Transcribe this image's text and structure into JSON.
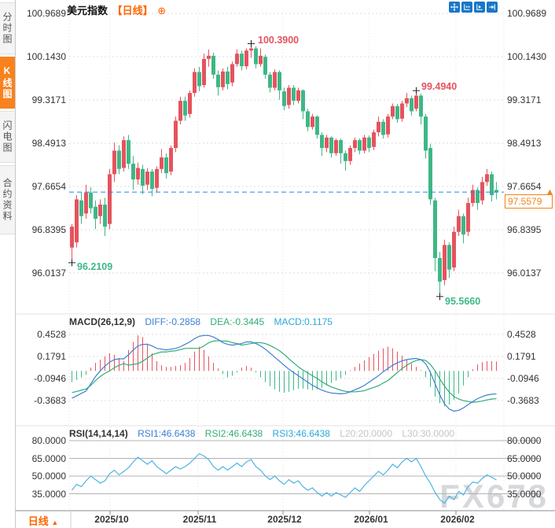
{
  "header": {
    "symbol": "美元指数",
    "period_tag": "【日线】",
    "add_icon": "⊕"
  },
  "sidebar": {
    "tabs": [
      {
        "label": "分时图",
        "active": false
      },
      {
        "label": "K线图",
        "active": true
      },
      {
        "label": "闪电图",
        "active": false
      },
      {
        "label": "合约资料",
        "active": false
      }
    ]
  },
  "toolbar": {
    "buttons": [
      "crosshair",
      "compress-time-axis",
      "expand-time-axis",
      "go-to-latest"
    ]
  },
  "price_panel": {
    "axis_labels": [
      "100.9689",
      "100.1430",
      "99.3171",
      "98.4913",
      "97.6654",
      "96.8395",
      "96.0137"
    ],
    "annotations": {
      "high": "100.3900",
      "second_peak": "99.4940",
      "start_low": "96.2109",
      "low": "95.5660"
    },
    "current_price": "97.5579",
    "current_arrow": "▲"
  },
  "macd_panel": {
    "header": {
      "name": "MACD(26,12,9)",
      "diff_label": "DIFF:-0.2858",
      "dea_label": "DEA:-0.3445",
      "macd_label": "MACD:0.1175"
    },
    "axis_labels": [
      "0.4528",
      "0.1791",
      "-0.0946",
      "-0.3683"
    ]
  },
  "rsi_panel": {
    "header": {
      "name": "RSI(14,14,14)",
      "rsi1_label": "RSI1:46.6438",
      "rsi2_label": "RSI2:46.6438",
      "rsi3_label": "RSI3:46.6438",
      "l20_label": "L20:20.0000",
      "l30_label": "L30:30.0000"
    },
    "axis_labels": [
      "80.0000",
      "65.0000",
      "50.0000",
      "35.0000"
    ]
  },
  "bottom_bar": {
    "period": "日线",
    "arrow": "▲"
  },
  "watermark": "FX678",
  "colors": {
    "up": "#e5535e",
    "down": "#3eb786",
    "accent_orange": "#f8821e",
    "diff_blue": "#3b7fd4",
    "dea_green": "#2fae77",
    "rsi_blue": "#4db3e6",
    "dashed_line": "#1e88e5",
    "toolbar_blue": "#1878c8",
    "grid": "#dcdcdc",
    "rsi_grid": "#b3b3b3",
    "axis_line": "#8c8c8c"
  },
  "chart_data": [
    {
      "type": "candlestick",
      "title": "美元指数 日线 (US Dollar Index, Daily)",
      "x_tick_labels": [
        "2025/10",
        "2025/11",
        "2025/12",
        "2026/01",
        "2026/02"
      ],
      "x_tick_candle_index": [
        9,
        27,
        45,
        63,
        81
      ],
      "y_ticks": [
        100.9689,
        100.143,
        99.3171,
        98.4913,
        97.6654,
        96.8395,
        96.0137
      ],
      "ylim": [
        95.45,
        101.05
      ],
      "last_price": 97.5579,
      "marked_points": {
        "high_index": 38,
        "second_peak_index": 73,
        "start_low_index": 0,
        "low_index": 78
      },
      "candles": [
        [
          96.5,
          96.95,
          96.2109,
          96.9
        ],
        [
          96.6,
          97.5,
          96.5,
          97.42
        ],
        [
          97.4,
          97.55,
          96.95,
          97.1
        ],
        [
          97.15,
          97.7,
          97.05,
          97.55
        ],
        [
          97.55,
          97.65,
          97.15,
          97.25
        ],
        [
          97.28,
          97.4,
          96.85,
          97.05
        ],
        [
          97.1,
          97.42,
          96.95,
          97.32
        ],
        [
          97.32,
          97.45,
          96.72,
          96.9
        ],
        [
          96.95,
          98.0,
          96.85,
          97.9
        ],
        [
          97.9,
          98.5,
          97.75,
          98.35
        ],
        [
          98.35,
          98.45,
          97.9,
          98.0
        ],
        [
          98.02,
          98.62,
          97.95,
          98.55
        ],
        [
          98.55,
          98.65,
          98.0,
          98.1
        ],
        [
          98.1,
          98.25,
          97.6,
          97.8
        ],
        [
          97.8,
          98.12,
          97.7,
          98.02
        ],
        [
          98.0,
          98.08,
          97.52,
          97.68
        ],
        [
          97.7,
          98.02,
          97.6,
          97.95
        ],
        [
          97.95,
          98.0,
          97.48,
          97.62
        ],
        [
          97.64,
          98.05,
          97.55,
          98.0
        ],
        [
          98.0,
          98.38,
          97.92,
          98.22
        ],
        [
          98.22,
          98.3,
          97.82,
          97.92
        ],
        [
          97.95,
          98.45,
          97.88,
          98.4
        ],
        [
          98.4,
          99.0,
          98.32,
          98.92
        ],
        [
          98.92,
          99.38,
          98.85,
          99.3
        ],
        [
          99.3,
          99.38,
          98.92,
          99.02
        ],
        [
          99.05,
          99.5,
          98.98,
          99.45
        ],
        [
          99.45,
          99.92,
          99.38,
          99.85
        ],
        [
          99.85,
          99.95,
          99.48,
          99.58
        ],
        [
          99.6,
          100.2,
          99.55,
          100.1
        ],
        [
          100.1,
          100.28,
          99.95,
          100.16
        ],
        [
          100.16,
          100.22,
          99.72,
          99.8
        ],
        [
          99.8,
          99.88,
          99.4,
          99.56
        ],
        [
          99.56,
          99.92,
          99.5,
          99.86
        ],
        [
          99.86,
          99.95,
          99.52,
          99.62
        ],
        [
          99.65,
          100.05,
          99.58,
          100.0
        ],
        [
          100.0,
          100.28,
          99.95,
          100.2
        ],
        [
          100.2,
          100.26,
          99.88,
          99.96
        ],
        [
          99.96,
          100.3,
          99.9,
          100.26
        ],
        [
          100.26,
          100.39,
          100.12,
          100.3
        ],
        [
          100.3,
          100.34,
          99.92,
          100.0
        ],
        [
          100.0,
          100.3,
          99.95,
          100.16
        ],
        [
          100.14,
          100.18,
          99.72,
          99.8
        ],
        [
          99.8,
          99.85,
          99.46,
          99.55
        ],
        [
          99.55,
          99.9,
          99.5,
          99.85
        ],
        [
          99.85,
          99.88,
          99.32,
          99.5
        ],
        [
          99.48,
          99.55,
          99.12,
          99.2
        ],
        [
          99.22,
          99.6,
          99.15,
          99.55
        ],
        [
          99.55,
          99.6,
          99.22,
          99.3
        ],
        [
          99.3,
          99.55,
          99.25,
          99.5
        ],
        [
          99.5,
          99.52,
          98.95,
          99.1
        ],
        [
          99.1,
          99.15,
          98.72,
          98.8
        ],
        [
          98.8,
          99.05,
          98.75,
          99.0
        ],
        [
          99.0,
          99.02,
          98.58,
          98.65
        ],
        [
          98.65,
          98.7,
          98.25,
          98.4
        ],
        [
          98.4,
          98.65,
          98.32,
          98.6
        ],
        [
          98.6,
          98.62,
          98.22,
          98.3
        ],
        [
          98.3,
          98.58,
          98.25,
          98.55
        ],
        [
          98.55,
          98.58,
          98.1,
          98.3
        ],
        [
          98.3,
          98.35,
          97.97,
          98.15
        ],
        [
          98.15,
          98.45,
          98.08,
          98.4
        ],
        [
          98.4,
          98.6,
          98.32,
          98.55
        ],
        [
          98.55,
          98.58,
          98.28,
          98.35
        ],
        [
          98.35,
          98.65,
          98.3,
          98.6
        ],
        [
          98.6,
          98.64,
          98.32,
          98.4
        ],
        [
          98.42,
          98.75,
          98.36,
          98.7
        ],
        [
          98.7,
          99.0,
          98.62,
          98.9
        ],
        [
          98.9,
          98.95,
          98.58,
          98.65
        ],
        [
          98.66,
          99.05,
          98.6,
          99.0
        ],
        [
          99.0,
          99.25,
          98.95,
          99.2
        ],
        [
          99.2,
          99.24,
          98.88,
          98.95
        ],
        [
          98.96,
          99.3,
          98.9,
          99.25
        ],
        [
          99.25,
          99.45,
          99.18,
          99.35
        ],
        [
          99.35,
          99.4,
          99.02,
          99.1
        ],
        [
          99.15,
          99.494,
          99.1,
          99.4
        ],
        [
          99.4,
          99.44,
          98.85,
          99.0
        ],
        [
          99.0,
          99.05,
          98.2,
          98.35
        ],
        [
          98.4,
          98.48,
          97.32,
          97.42
        ],
        [
          97.4,
          97.45,
          96.05,
          96.3
        ],
        [
          96.3,
          96.42,
          95.566,
          95.85
        ],
        [
          95.88,
          96.65,
          95.78,
          96.55
        ],
        [
          96.55,
          96.6,
          95.92,
          96.08
        ],
        [
          96.12,
          96.9,
          96.05,
          96.8
        ],
        [
          96.8,
          97.22,
          96.72,
          97.1
        ],
        [
          97.1,
          97.15,
          96.58,
          96.75
        ],
        [
          96.8,
          97.45,
          96.72,
          97.35
        ],
        [
          97.35,
          97.7,
          97.28,
          97.6
        ],
        [
          97.6,
          97.65,
          97.22,
          97.35
        ],
        [
          97.4,
          97.85,
          97.32,
          97.75
        ],
        [
          97.75,
          98.0,
          97.68,
          97.9
        ],
        [
          97.9,
          97.95,
          97.38,
          97.5
        ],
        [
          97.6,
          97.75,
          97.42,
          97.5579
        ]
      ]
    },
    {
      "type": "bar",
      "name": "MACD(26,12,9)",
      "y_ticks": [
        0.4528,
        0.1791,
        -0.0946,
        -0.3683
      ],
      "last_values": {
        "diff": -0.2858,
        "dea": -0.3445,
        "macd": 0.1175
      },
      "hist": [
        -0.14,
        -0.11,
        -0.08,
        -0.05,
        0.04,
        0.1,
        0.14,
        0.18,
        0.22,
        0.2,
        0.16,
        0.12,
        0.26,
        0.36,
        0.44,
        0.42,
        0.34,
        0.22,
        0.12,
        0.07,
        0.05,
        0.05,
        0.06,
        0.07,
        0.1,
        0.16,
        0.24,
        0.3,
        0.26,
        0.18,
        0.1,
        0.03,
        -0.04,
        -0.08,
        -0.06,
        -0.02,
        0.04,
        0.06,
        0.04,
        -0.02,
        -0.08,
        -0.14,
        -0.19,
        -0.23,
        -0.26,
        -0.27,
        -0.26,
        -0.24,
        -0.22,
        -0.22,
        -0.23,
        -0.24,
        -0.23,
        -0.21,
        -0.18,
        -0.15,
        -0.12,
        -0.09,
        -0.05,
        0.0,
        0.05,
        0.09,
        0.13,
        0.17,
        0.21,
        0.25,
        0.28,
        0.3,
        0.28,
        0.24,
        0.19,
        0.14,
        0.09,
        0.05,
        0.0,
        -0.08,
        -0.2,
        -0.32,
        -0.4,
        -0.44,
        -0.42,
        -0.36,
        -0.28,
        -0.18,
        -0.08,
        0.02,
        0.08,
        0.11,
        0.12,
        0.12,
        0.1175
      ],
      "diff": [
        -0.34,
        -0.31,
        -0.28,
        -0.25,
        -0.16,
        -0.07,
        0.0,
        0.06,
        0.11,
        0.14,
        0.15,
        0.15,
        0.2,
        0.26,
        0.31,
        0.33,
        0.33,
        0.31,
        0.28,
        0.27,
        0.26,
        0.27,
        0.28,
        0.3,
        0.33,
        0.36,
        0.4,
        0.43,
        0.44,
        0.44,
        0.42,
        0.39,
        0.35,
        0.33,
        0.32,
        0.33,
        0.34,
        0.36,
        0.36,
        0.34,
        0.31,
        0.27,
        0.22,
        0.17,
        0.12,
        0.07,
        0.02,
        -0.02,
        -0.06,
        -0.1,
        -0.14,
        -0.18,
        -0.21,
        -0.24,
        -0.26,
        -0.275,
        -0.28,
        -0.285,
        -0.28,
        -0.26,
        -0.235,
        -0.21,
        -0.18,
        -0.14,
        -0.1,
        -0.06,
        -0.01,
        0.03,
        0.07,
        0.1,
        0.125,
        0.14,
        0.15,
        0.155,
        0.14,
        0.09,
        -0.02,
        -0.16,
        -0.3,
        -0.41,
        -0.475,
        -0.5,
        -0.49,
        -0.46,
        -0.42,
        -0.38,
        -0.345,
        -0.32,
        -0.3,
        -0.29,
        -0.2858
      ],
      "dea_rule": "dea = diff - hist/2"
    },
    {
      "type": "line",
      "name": "RSI(14,14,14)",
      "y_ticks": [
        80,
        65,
        50,
        35
      ],
      "values": [
        38,
        43,
        41,
        46,
        50,
        47,
        44,
        46,
        52,
        55,
        51,
        54,
        57,
        62,
        66,
        63,
        60,
        63,
        58,
        55,
        52,
        55,
        58,
        56,
        58,
        61,
        65,
        69,
        67,
        64,
        58,
        55,
        58,
        55,
        58,
        61,
        58,
        62,
        64,
        58,
        55,
        50,
        47,
        50,
        46,
        43,
        47,
        44,
        46,
        41,
        38,
        40,
        36,
        33,
        36,
        33,
        36,
        34,
        32,
        36,
        40,
        37,
        42,
        46,
        50,
        54,
        51,
        55,
        60,
        57,
        62,
        65,
        62,
        65,
        58,
        50,
        44,
        36,
        30,
        27,
        33,
        30,
        37,
        34,
        41,
        45,
        44,
        48,
        51,
        49,
        46.6438
      ]
    }
  ]
}
